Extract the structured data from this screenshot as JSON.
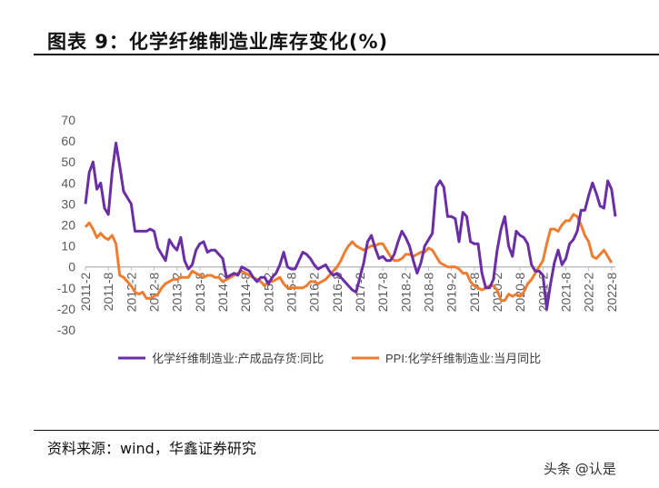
{
  "title": "图表 9：化学纤维制造业库存变化(%)",
  "source": "资料来源：wind，华鑫证券研究",
  "watermark": "头条 @认是",
  "colors": {
    "series1": "#6a2fa5",
    "series2": "#ee7d31",
    "axis": "#bfbfbf",
    "tick": "#595959"
  },
  "chart_data": {
    "type": "line",
    "title": "化学纤维制造业库存变化(%)",
    "start_month": "2011-2",
    "frequency": "monthly",
    "x_tick_labels": [
      "2011-2",
      "2011-8",
      "2012-2",
      "2012-8",
      "2013-2",
      "2013-8",
      "2014-2",
      "2014-8",
      "2015-2",
      "2015-8",
      "2016-2",
      "2016-8",
      "2017-2",
      "2017-8",
      "2018-2",
      "2018-8",
      "2019-2",
      "2019-8",
      "2020-2",
      "2020-8",
      "2021-2",
      "2021-8",
      "2022-2",
      "2022-8"
    ],
    "y_tick_labels": [
      "70",
      "60",
      "50",
      "40",
      "30",
      "20",
      "10",
      "0",
      "-10",
      "-20",
      "-30"
    ],
    "ylim": [
      -30,
      70
    ],
    "legend_position": "bottom",
    "series": [
      {
        "name": "化学纤维制造业:产成品存货:同比",
        "values": [
          30,
          45,
          50,
          37,
          40,
          28,
          25,
          45,
          59,
          48,
          36,
          33,
          30,
          17,
          17,
          17,
          17,
          18,
          17,
          9,
          6,
          3,
          13,
          10,
          8,
          14,
          3,
          -1,
          1,
          8,
          11,
          12,
          7,
          8,
          8,
          6,
          4,
          -5,
          -4,
          -3,
          -4,
          0,
          -1,
          -2,
          -5,
          -7,
          -5,
          -5,
          -8,
          -5,
          -3,
          1,
          7,
          0,
          -1,
          -1,
          3,
          7,
          6,
          4,
          1,
          -1,
          0,
          1,
          -2,
          -4,
          -3,
          -5,
          -7,
          -9,
          -11,
          -12,
          -5,
          2,
          12,
          15,
          9,
          4,
          5,
          3,
          3,
          6,
          12,
          17,
          14,
          10,
          3,
          -3,
          2,
          10,
          13,
          16,
          38,
          41,
          38,
          24,
          24,
          23,
          12,
          26,
          24,
          12,
          11,
          11,
          -3,
          -10,
          -10,
          -6,
          8,
          18,
          24,
          10,
          5,
          17,
          15,
          14,
          11,
          1,
          -2,
          -2,
          -4,
          -20,
          -8,
          2,
          8,
          1,
          4,
          11,
          13,
          17,
          27,
          27,
          34,
          40,
          35,
          29,
          28,
          41,
          37,
          24
        ]
      },
      {
        "name": "PPI:化学纤维制造业:当月同比",
        "values": [
          19,
          21,
          18,
          14,
          16,
          14,
          13,
          15,
          11,
          -4,
          -5,
          -7,
          -9,
          -12,
          -13,
          -12,
          -15,
          -15,
          -14,
          -13,
          -10,
          -8,
          -7,
          -6,
          -6,
          -5,
          -5,
          -5,
          -2,
          -3,
          -4,
          -5,
          -4,
          -4,
          -5,
          -5,
          -7,
          -6,
          -5,
          -4,
          -3,
          -2,
          -3,
          -4,
          -5,
          -6,
          -7,
          -9,
          -7,
          -7,
          -6,
          -5,
          -8,
          -10,
          -10,
          -10,
          -10,
          -10,
          -9,
          -7,
          -7,
          -8,
          -7,
          -6,
          -4,
          -2,
          0,
          3,
          7,
          10,
          12,
          10,
          9,
          8,
          9,
          10,
          10,
          11,
          11,
          8,
          5,
          3,
          3,
          4,
          6,
          6,
          5,
          6,
          7,
          7,
          9,
          8,
          5,
          2,
          1,
          0,
          0,
          0,
          -1,
          -3,
          -3,
          -7,
          -9,
          -10,
          -11,
          -10,
          -9,
          -9,
          -11,
          -16,
          -16,
          -13,
          -14,
          -13,
          -14,
          -12,
          -8,
          -6,
          -3,
          0,
          3,
          11,
          18,
          18,
          17,
          20,
          22,
          22,
          25,
          24,
          20,
          15,
          12,
          5,
          4,
          6,
          8,
          5,
          2
        ]
      }
    ]
  }
}
